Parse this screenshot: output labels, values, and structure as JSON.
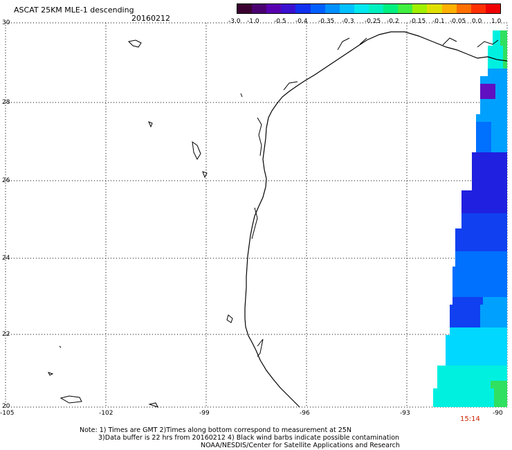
{
  "header": {
    "title": "ASCAT 25KM MLE-1 descending",
    "date": "20160212"
  },
  "colorbar": {
    "labels": [
      "-3.0",
      "-1.0",
      "-0.5",
      "-0.4",
      "-0.35",
      "-0.3",
      "-0.25",
      "-0.2",
      "-0.15",
      "-0.1",
      "-0.05",
      "0.0",
      "1.0"
    ],
    "colors": [
      "#3a0030",
      "#4a0070",
      "#5800b0",
      "#3a10d0",
      "#1030f0",
      "#0060ff",
      "#0090ff",
      "#00c0ff",
      "#00e8f0",
      "#00f0c0",
      "#00f080",
      "#40f040",
      "#a0f000",
      "#e0e000",
      "#ffb000",
      "#ff7000",
      "#ff3000",
      "#f00000"
    ]
  },
  "axes": {
    "y_labels": [
      "30",
      "28",
      "26",
      "24",
      "22",
      "20"
    ],
    "x_labels": [
      "-105",
      "-102",
      "-99",
      "-96",
      "-93",
      "-90"
    ]
  },
  "notes": {
    "line1": "Note: 1) Times are GMT 2)Times along bottom correspond to measurement at 25N",
    "line2": "3)Data buffer is 22 hrs from 20160212 4) Black wind barbs indicate possible contamination",
    "line3": "NOAA/NESDIS/Center for Satellite Applications and Research"
  },
  "time_label": "15:14",
  "swath_colors": {
    "deep_blue": "#2020e0",
    "blue": "#1040f0",
    "mid_blue": "#0070ff",
    "light_blue": "#00a0ff",
    "cyan": "#00d8ff",
    "aqua": "#00f0e0",
    "green": "#30e060",
    "purple": "#6010c0"
  }
}
